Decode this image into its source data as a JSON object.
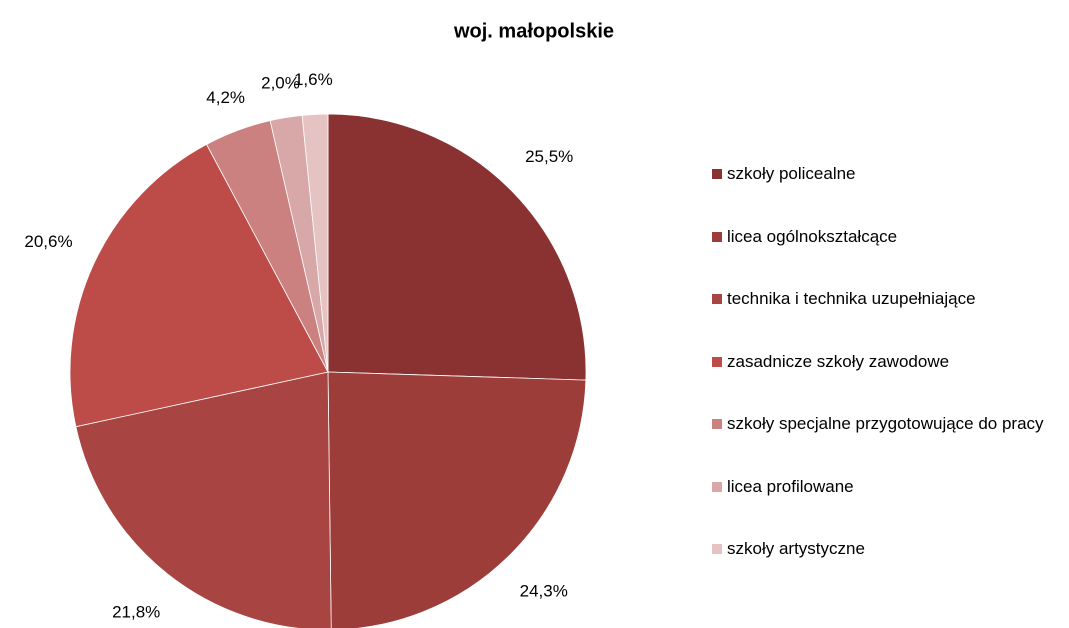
{
  "chart_data": {
    "type": "pie",
    "title": "woj. małopolskie",
    "categories": [
      "szkoły policealne",
      "licea ogólnokształcące",
      "technika i technika uzupełniające",
      "zasadnicze szkoły zawodowe",
      "szkoły specjalne przygotowujące do pracy",
      "licea profilowane",
      "szkoły artystyczne"
    ],
    "values": [
      25.5,
      24.3,
      21.8,
      20.6,
      4.2,
      2.0,
      1.6
    ],
    "value_labels": [
      "25,5%",
      "24,3%",
      "21,8%",
      "20,6%",
      "4,2%",
      "2,0%",
      "1,6%"
    ],
    "colors": [
      "#8a3232",
      "#9c3d3a",
      "#a84441",
      "#bd4b48",
      "#cb8180",
      "#d8a8a8",
      "#e5c3c3"
    ],
    "legend": "right"
  }
}
